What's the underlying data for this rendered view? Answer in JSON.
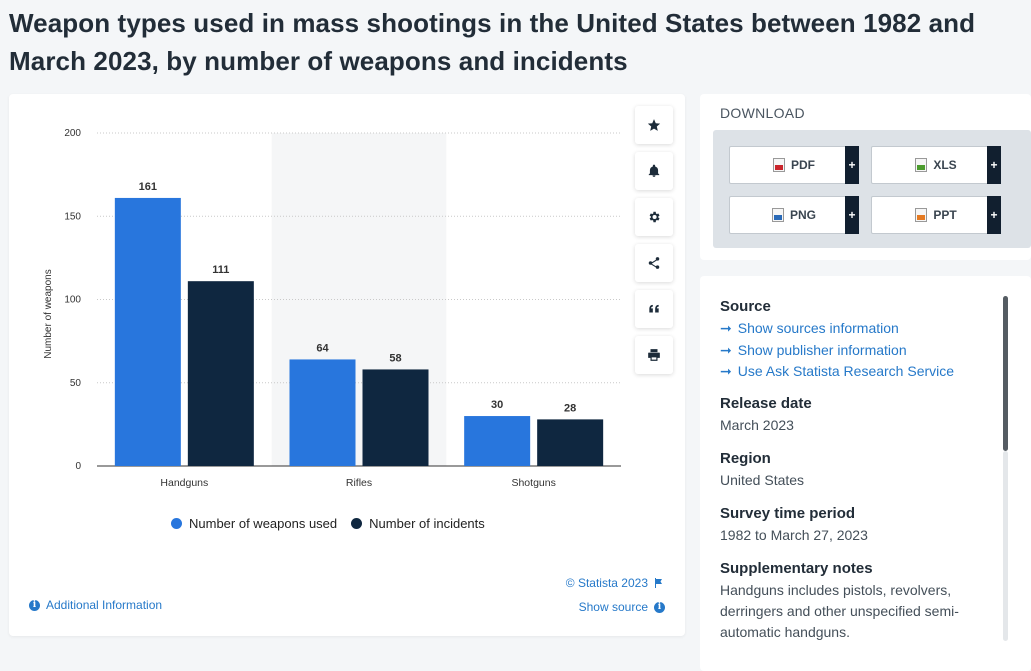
{
  "page": {
    "title": "Weapon types used in mass shootings in the United States between 1982 and March 2023, by number of weapons and incidents"
  },
  "chart_data": {
    "type": "bar",
    "categories": [
      "Handguns",
      "Rifles",
      "Shotguns"
    ],
    "series": [
      {
        "name": "Number of weapons used",
        "values": [
          161,
          64,
          30
        ],
        "color": "#2876dd"
      },
      {
        "name": "Number of incidents",
        "values": [
          111,
          58,
          28
        ],
        "color": "#0f2740"
      }
    ],
    "ylabel": "Number of weapons",
    "ylim": [
      0,
      200
    ],
    "yticks": [
      0,
      50,
      100,
      150,
      200
    ],
    "grid": true,
    "highlighted_category": "Rifles",
    "legend_position": "bottom"
  },
  "chart_card": {
    "credit": "© Statista 2023",
    "show_source": "Show source",
    "additional_info": "Additional Information"
  },
  "toolbar": {
    "icons": [
      "star-icon",
      "bell-icon",
      "gear-icon",
      "share-icon",
      "quote-icon",
      "print-icon"
    ]
  },
  "download": {
    "title": "DOWNLOAD",
    "buttons": [
      {
        "label": "PDF",
        "icon": "pdf-icon",
        "color": "#c9242b"
      },
      {
        "label": "XLS",
        "icon": "xls-icon",
        "color": "#4c9c2e"
      },
      {
        "label": "PNG",
        "icon": "png-icon",
        "color": "#2a6ab7"
      },
      {
        "label": "PPT",
        "icon": "ppt-icon",
        "color": "#e57a22"
      }
    ],
    "plus": "+"
  },
  "info": {
    "source_head": "Source",
    "links": [
      "Show sources information",
      "Show publisher information",
      "Use Ask Statista Research Service"
    ],
    "release_head": "Release date",
    "release": "March 2023",
    "region_head": "Region",
    "region": "United States",
    "period_head": "Survey time period",
    "period": "1982 to March 27, 2023",
    "notes_head": "Supplementary notes",
    "notes": "Handguns includes pistols, revolvers, derringers and other unspecified semi-automatic handguns."
  }
}
